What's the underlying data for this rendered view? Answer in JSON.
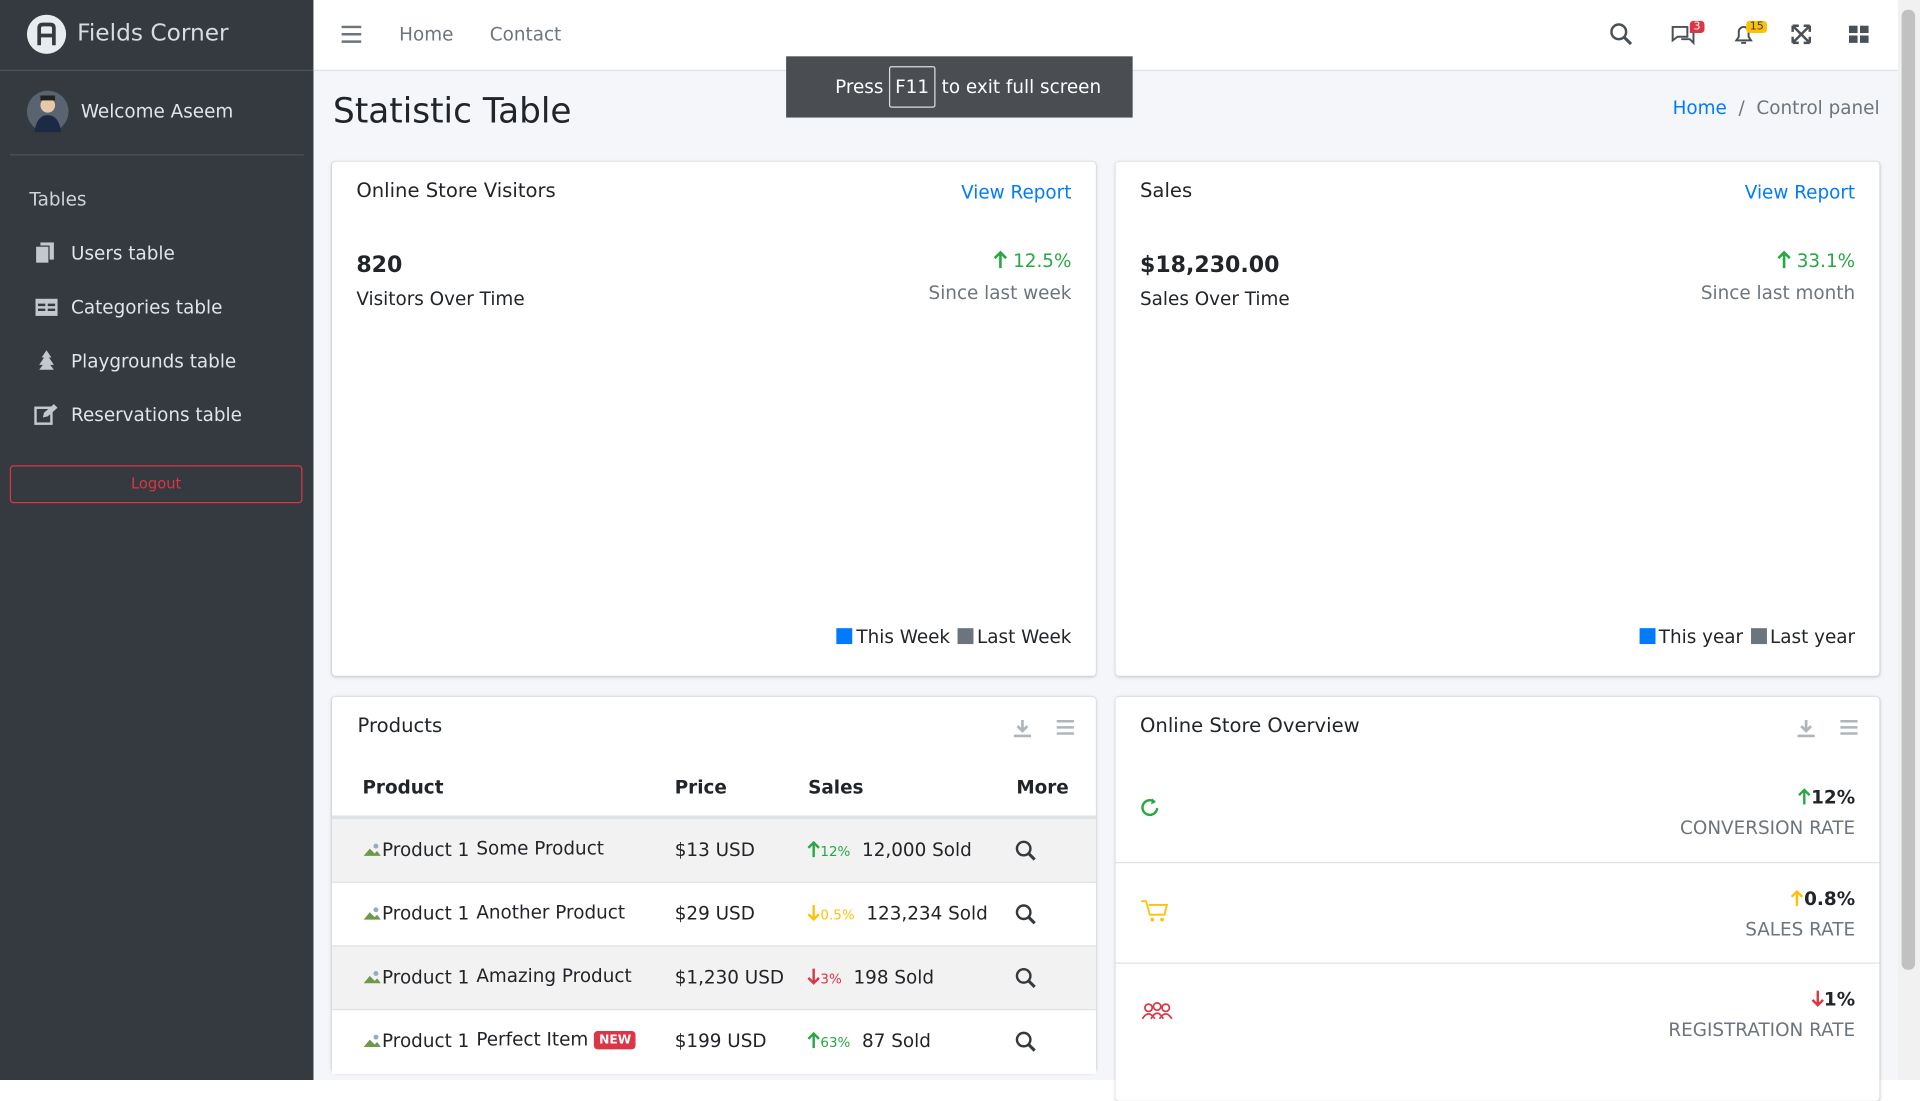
{
  "brand": "Fields Corner",
  "user": "Welcome Aseem",
  "sidebar": {
    "section": "Tables",
    "items": [
      "Users table",
      "Categories table",
      "Playgrounds table",
      "Reservations table"
    ],
    "logout": "Logout"
  },
  "navbar": {
    "links": [
      "Home",
      "Contact"
    ],
    "messages_badge": 3,
    "notifications_badge": 15
  },
  "toast": {
    "before": "Press",
    "key": "F11",
    "after": "to exit full screen"
  },
  "page_title": "Statistic Table",
  "breadcrumb": [
    "Home",
    "Control panel"
  ],
  "cards": [
    {
      "title": "Online Store Visitors",
      "link": "View Report",
      "value": "820",
      "label": "Visitors Over Time",
      "change": "12.5%",
      "since": "Since last week",
      "legend": [
        {
          "name": "This Week",
          "color": "#007bff"
        },
        {
          "name": "Last Week",
          "color": "#6c757d"
        }
      ]
    },
    {
      "title": "Sales",
      "link": "View Report",
      "value": "$18,230.00",
      "label": "Sales Over Time",
      "change": "33.1%",
      "since": "Since last month",
      "legend": [
        {
          "name": "This year",
          "color": "#007bff"
        },
        {
          "name": "Last year",
          "color": "#6c757d"
        }
      ]
    }
  ],
  "products": {
    "title": "Products",
    "headers": [
      "Product",
      "Price",
      "Sales",
      "More"
    ],
    "rows": [
      {
        "image": "Product 1",
        "name": "Some Product",
        "price": "$13 USD",
        "change": "12%",
        "trend": "up",
        "color": "#28a745",
        "sold": "12,000 Sold"
      },
      {
        "image": "Product 1",
        "name": "Another Product",
        "price": "$29 USD",
        "change": "0.5%",
        "trend": "down",
        "color": "#ffc107",
        "sold": "123,234 Sold"
      },
      {
        "image": "Product 1",
        "name": "Amazing Product",
        "price": "$1,230 USD",
        "change": "3%",
        "trend": "down",
        "color": "#dc3545",
        "sold": "198 Sold"
      },
      {
        "image": "Product 1",
        "name": "Perfect Item",
        "badge": "NEW",
        "price": "$199 USD",
        "change": "63%",
        "trend": "up",
        "color": "#28a745",
        "sold": "87 Sold"
      }
    ]
  },
  "overview": {
    "title": "Online Store Overview",
    "items": [
      {
        "change": "12%",
        "trend": "up",
        "color": "#28a745",
        "label": "CONVERSION RATE",
        "icon_color": "#28a745"
      },
      {
        "change": "0.8%",
        "trend": "up",
        "color": "#ffc107",
        "label": "SALES RATE",
        "icon_color": "#ffc107"
      },
      {
        "change": "1%",
        "trend": "down",
        "color": "#dc3545",
        "label": "REGISTRATION RATE",
        "icon_color": "#dc3545"
      }
    ]
  }
}
